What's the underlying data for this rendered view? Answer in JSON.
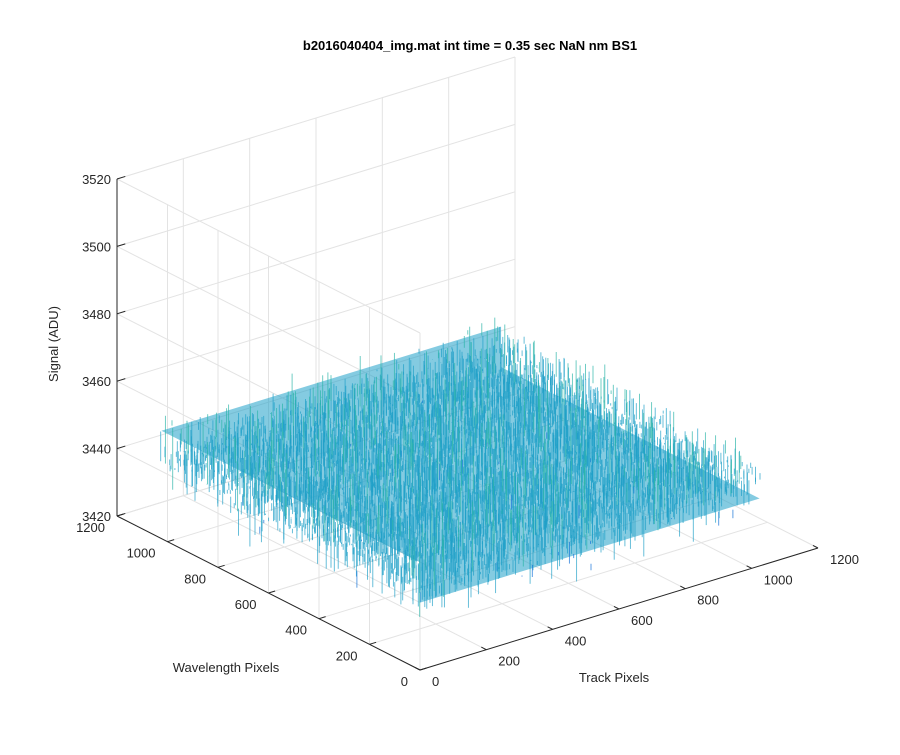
{
  "chart_data": {
    "type": "surface",
    "title": "b2016040404_img.mat int time = 0.35 sec  NaN nm BS1",
    "xlabel": "Track Pixels",
    "ylabel": "Wavelength Pixels",
    "zlabel": "Signal (ADU)",
    "xlim": [
      0,
      1200
    ],
    "ylim": [
      0,
      1200
    ],
    "zlim": [
      3420,
      3520
    ],
    "x_ticks": [
      "0",
      "200",
      "400",
      "600",
      "800",
      "1000",
      "1200"
    ],
    "y_ticks": [
      "0",
      "200",
      "400",
      "600",
      "800",
      "1000",
      "1200"
    ],
    "z_ticks": [
      "3420",
      "3440",
      "3460",
      "3480",
      "3500",
      "3520"
    ],
    "x_extent": [
      0,
      1024
    ],
    "y_extent": [
      0,
      1024
    ],
    "surface_mean": 3445,
    "surface_noise_range": [
      3425,
      3495
    ],
    "grid": true,
    "colormap": "parula",
    "colors": {
      "low": "#0f6fd8",
      "mid": "#1fa0c8",
      "teal": "#2ab5a8",
      "high": "#a9c84a",
      "peak": "#d8c040"
    }
  }
}
